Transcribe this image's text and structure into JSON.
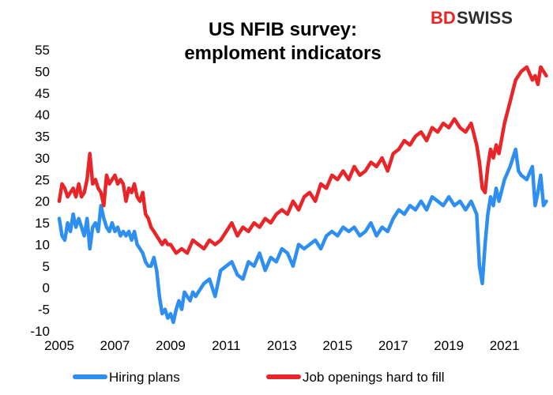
{
  "logo": {
    "part1": "BD",
    "part2": "SWISS"
  },
  "chart_data": {
    "type": "line",
    "title": [
      "US NFIB survey:",
      "emploment indicators"
    ],
    "xlabel": "",
    "ylabel": "",
    "xlim": [
      2005,
      2022.6
    ],
    "ylim": [
      -10,
      55
    ],
    "y_ticks": [
      -10,
      -5,
      0,
      5,
      10,
      15,
      20,
      25,
      30,
      35,
      40,
      45,
      50,
      55
    ],
    "x_ticks": [
      2005,
      2007,
      2009,
      2011,
      2013,
      2015,
      2017,
      2019,
      2021
    ],
    "grid": false,
    "legend_position": "bottom",
    "series": [
      {
        "name": "Hiring plans",
        "color": "#2f8ff0",
        "x": [
          2005.0,
          2005.1,
          2005.2,
          2005.3,
          2005.4,
          2005.5,
          2005.6,
          2005.7,
          2005.8,
          2005.9,
          2006.0,
          2006.1,
          2006.2,
          2006.3,
          2006.4,
          2006.5,
          2006.6,
          2006.7,
          2006.8,
          2006.9,
          2007.0,
          2007.1,
          2007.2,
          2007.3,
          2007.4,
          2007.5,
          2007.6,
          2007.7,
          2007.8,
          2007.9,
          2008.0,
          2008.1,
          2008.2,
          2008.3,
          2008.4,
          2008.5,
          2008.6,
          2008.7,
          2008.8,
          2008.9,
          2009.0,
          2009.1,
          2009.2,
          2009.3,
          2009.4,
          2009.5,
          2009.6,
          2009.7,
          2009.8,
          2009.9,
          2010.0,
          2010.2,
          2010.4,
          2010.6,
          2010.8,
          2011.0,
          2011.2,
          2011.4,
          2011.6,
          2011.8,
          2012.0,
          2012.2,
          2012.4,
          2012.6,
          2012.8,
          2013.0,
          2013.2,
          2013.4,
          2013.6,
          2013.8,
          2014.0,
          2014.2,
          2014.4,
          2014.6,
          2014.8,
          2015.0,
          2015.2,
          2015.4,
          2015.6,
          2015.8,
          2016.0,
          2016.2,
          2016.4,
          2016.6,
          2016.8,
          2017.0,
          2017.2,
          2017.4,
          2017.6,
          2017.8,
          2018.0,
          2018.2,
          2018.4,
          2018.6,
          2018.8,
          2019.0,
          2019.2,
          2019.4,
          2019.6,
          2019.8,
          2020.0,
          2020.1,
          2020.2,
          2020.3,
          2020.4,
          2020.5,
          2020.6,
          2020.7,
          2020.8,
          2021.0,
          2021.2,
          2021.4,
          2021.5,
          2021.6,
          2021.8,
          2022.0,
          2022.1,
          2022.2,
          2022.3,
          2022.4,
          2022.5
        ],
        "y": [
          16,
          12,
          11,
          15,
          13,
          17,
          14,
          16,
          14,
          12,
          16,
          9,
          14,
          15,
          13,
          19,
          16,
          14,
          13,
          15,
          13,
          14,
          12,
          13,
          12,
          13,
          11,
          13,
          10,
          9,
          8,
          6,
          5,
          5,
          7,
          4,
          -2,
          -6,
          -5,
          -7,
          -6,
          -8,
          -5,
          -3,
          -5,
          -1,
          -2,
          -3,
          -1,
          -2,
          -1,
          1,
          2,
          -2,
          4,
          5,
          6,
          3,
          2,
          6,
          5,
          8,
          4,
          7,
          6,
          9,
          8,
          5,
          10,
          9,
          10,
          11,
          9,
          12,
          13,
          12,
          14,
          13,
          14,
          12,
          13,
          15,
          12,
          14,
          13,
          16,
          18,
          17,
          19,
          18,
          20,
          18,
          21,
          20,
          19,
          21,
          19,
          20,
          18,
          20,
          17,
          5,
          1,
          10,
          17,
          21,
          19,
          23,
          20,
          25,
          28,
          32,
          27,
          26,
          25,
          28,
          19,
          22,
          26,
          19,
          20
        ]
      },
      {
        "name": "Job openings hard to fill",
        "color": "#e8262a",
        "x": [
          2005.0,
          2005.1,
          2005.2,
          2005.3,
          2005.4,
          2005.5,
          2005.6,
          2005.7,
          2005.8,
          2005.9,
          2006.0,
          2006.1,
          2006.2,
          2006.3,
          2006.4,
          2006.5,
          2006.6,
          2006.7,
          2006.8,
          2006.9,
          2007.0,
          2007.1,
          2007.2,
          2007.3,
          2007.4,
          2007.5,
          2007.6,
          2007.7,
          2007.8,
          2007.9,
          2008.0,
          2008.1,
          2008.2,
          2008.3,
          2008.4,
          2008.5,
          2008.6,
          2008.7,
          2008.8,
          2008.9,
          2009.0,
          2009.2,
          2009.4,
          2009.6,
          2009.8,
          2010.0,
          2010.2,
          2010.4,
          2010.6,
          2010.8,
          2011.0,
          2011.2,
          2011.4,
          2011.6,
          2011.8,
          2012.0,
          2012.2,
          2012.4,
          2012.6,
          2012.8,
          2013.0,
          2013.2,
          2013.4,
          2013.6,
          2013.8,
          2014.0,
          2014.2,
          2014.4,
          2014.6,
          2014.8,
          2015.0,
          2015.2,
          2015.4,
          2015.6,
          2015.8,
          2016.0,
          2016.2,
          2016.4,
          2016.6,
          2016.8,
          2017.0,
          2017.2,
          2017.4,
          2017.6,
          2017.8,
          2018.0,
          2018.2,
          2018.4,
          2018.6,
          2018.8,
          2019.0,
          2019.2,
          2019.4,
          2019.6,
          2019.8,
          2020.0,
          2020.1,
          2020.2,
          2020.3,
          2020.4,
          2020.5,
          2020.6,
          2020.7,
          2020.8,
          2021.0,
          2021.2,
          2021.4,
          2021.6,
          2021.8,
          2022.0,
          2022.1,
          2022.2,
          2022.3,
          2022.4,
          2022.5
        ],
        "y": [
          20,
          24,
          23,
          21,
          22,
          23,
          21,
          24,
          21,
          22,
          25,
          31,
          24,
          25,
          23,
          22,
          19,
          26,
          24,
          25,
          26,
          24,
          25,
          24,
          20,
          23,
          22,
          24,
          21,
          20,
          22,
          17,
          16,
          14,
          13,
          12,
          11,
          10,
          11,
          10,
          10,
          8,
          9,
          8,
          11,
          10,
          9,
          11,
          10,
          11,
          13,
          15,
          12,
          14,
          13,
          15,
          14,
          16,
          15,
          17,
          18,
          17,
          20,
          18,
          21,
          22,
          20,
          24,
          23,
          26,
          25,
          27,
          25,
          28,
          26,
          27,
          29,
          28,
          30,
          27,
          31,
          32,
          34,
          33,
          35,
          36,
          34,
          37,
          36,
          38,
          37,
          39,
          37,
          36,
          38,
          33,
          29,
          23,
          22,
          28,
          32,
          30,
          33,
          31,
          38,
          43,
          48,
          50,
          51,
          48,
          49,
          47,
          51,
          50,
          49
        ]
      }
    ]
  }
}
